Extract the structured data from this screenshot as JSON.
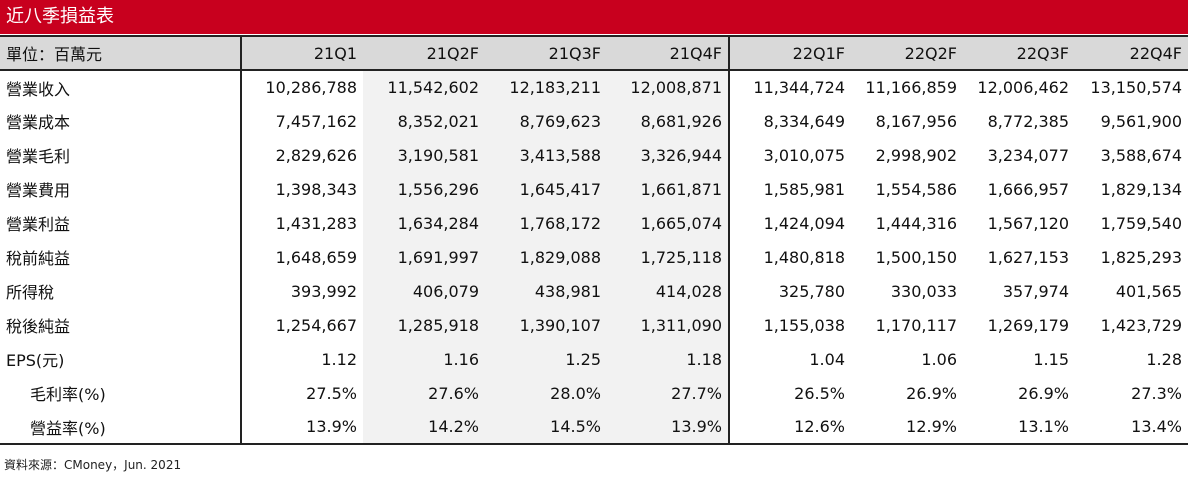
{
  "title": "近八季損益表",
  "header": {
    "unit_label": "單位：百萬元",
    "columns": [
      "21Q1",
      "21Q2F",
      "21Q3F",
      "21Q4F",
      "22Q1F",
      "22Q2F",
      "22Q3F",
      "22Q4F"
    ]
  },
  "rows": [
    {
      "label": "營業收入",
      "values": [
        "10,286,788",
        "11,542,602",
        "12,183,211",
        "12,008,871",
        "11,344,724",
        "11,166,859",
        "12,006,462",
        "13,150,574"
      ]
    },
    {
      "label": "營業成本",
      "values": [
        "7,457,162",
        "8,352,021",
        "8,769,623",
        "8,681,926",
        "8,334,649",
        "8,167,956",
        "8,772,385",
        "9,561,900"
      ]
    },
    {
      "label": "營業毛利",
      "values": [
        "2,829,626",
        "3,190,581",
        "3,413,588",
        "3,326,944",
        "3,010,075",
        "2,998,902",
        "3,234,077",
        "3,588,674"
      ]
    },
    {
      "label": "營業費用",
      "values": [
        "1,398,343",
        "1,556,296",
        "1,645,417",
        "1,661,871",
        "1,585,981",
        "1,554,586",
        "1,666,957",
        "1,829,134"
      ]
    },
    {
      "label": "營業利益",
      "values": [
        "1,431,283",
        "1,634,284",
        "1,768,172",
        "1,665,074",
        "1,424,094",
        "1,444,316",
        "1,567,120",
        "1,759,540"
      ]
    },
    {
      "label": "稅前純益",
      "values": [
        "1,648,659",
        "1,691,997",
        "1,829,088",
        "1,725,118",
        "1,480,818",
        "1,500,150",
        "1,627,153",
        "1,825,293"
      ]
    },
    {
      "label": "所得稅",
      "values": [
        "393,992",
        "406,079",
        "438,981",
        "414,028",
        "325,780",
        "330,033",
        "357,974",
        "401,565"
      ]
    },
    {
      "label": "稅後純益",
      "values": [
        "1,254,667",
        "1,285,918",
        "1,390,107",
        "1,311,090",
        "1,155,038",
        "1,170,117",
        "1,269,179",
        "1,423,729"
      ]
    },
    {
      "label": "EPS(元)",
      "values": [
        "1.12",
        "1.16",
        "1.25",
        "1.18",
        "1.04",
        "1.06",
        "1.15",
        "1.28"
      ]
    },
    {
      "label": "毛利率(%)",
      "indent": true,
      "values": [
        "27.5%",
        "27.6%",
        "28.0%",
        "27.7%",
        "26.5%",
        "26.9%",
        "26.9%",
        "27.3%"
      ]
    },
    {
      "label": "營益率(%)",
      "indent": true,
      "values": [
        "13.9%",
        "14.2%",
        "14.5%",
        "13.9%",
        "12.6%",
        "12.9%",
        "13.1%",
        "13.4%"
      ]
    }
  ],
  "source": "資料來源：CMoney，Jun. 2021",
  "colors": {
    "title_bg": "#c8001e",
    "header_bg": "#d9d9d9",
    "shade_bg": "#f2f2f2"
  }
}
